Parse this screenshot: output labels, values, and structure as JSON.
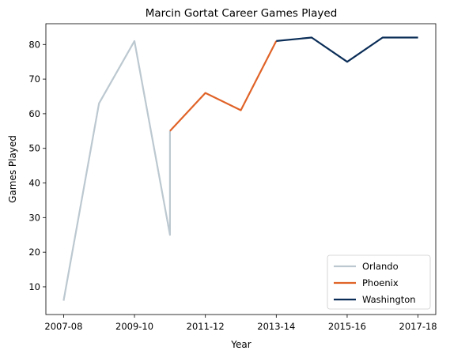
{
  "chart_data": {
    "type": "line",
    "title": "Marcin Gortat Career Games Played",
    "xlabel": "Year",
    "ylabel": "Games Played",
    "x_tick_labels": [
      "2007-08",
      "2009-10",
      "2011-12",
      "2013-14",
      "2015-16",
      "2017-18"
    ],
    "xlim": [
      -0.5,
      10.5
    ],
    "ylim": [
      2,
      86
    ],
    "y_ticks": [
      10,
      20,
      30,
      40,
      50,
      60,
      70,
      80
    ],
    "grid": false,
    "legend_position": "bottom-right",
    "series": [
      {
        "name": "Orlando",
        "color": "#bcc8d0",
        "x": [
          0,
          1,
          2,
          3,
          3
        ],
        "y": [
          6,
          63,
          81,
          25,
          55
        ]
      },
      {
        "name": "Phoenix",
        "color": "#e06328",
        "x": [
          3,
          4,
          5,
          6
        ],
        "y": [
          55,
          66,
          61,
          81
        ]
      },
      {
        "name": "Washington",
        "color": "#0a2d57",
        "x": [
          6,
          7,
          8,
          9,
          10
        ],
        "y": [
          81,
          82,
          75,
          82,
          82
        ]
      }
    ]
  }
}
